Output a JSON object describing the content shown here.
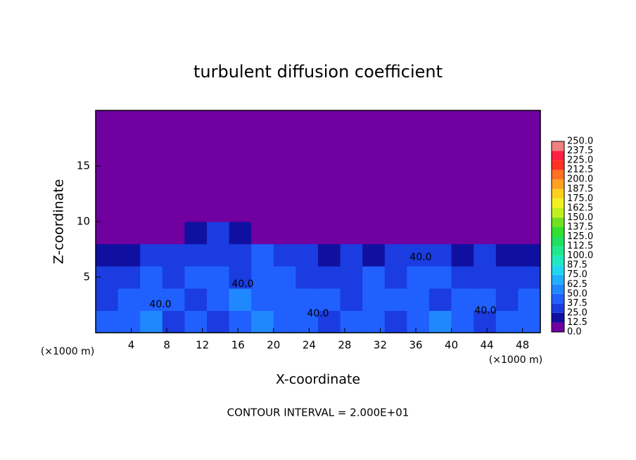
{
  "chart_data": {
    "type": "heatmap",
    "title": "turbulent diffusion coefficient",
    "x_label": "X-coordinate",
    "y_label": "Z-coordinate",
    "x_unit": "(×1000 m)",
    "x_unit_right": "(×1000 m)",
    "footnote": "CONTOUR INTERVAL = 2.000E+01",
    "xlim": [
      0,
      50
    ],
    "ylim": [
      0,
      20
    ],
    "xticks": [
      4,
      8,
      12,
      16,
      20,
      24,
      28,
      32,
      36,
      40,
      44,
      48
    ],
    "yticks": [
      5,
      10,
      15
    ],
    "z": [
      [
        40,
        45,
        50,
        35,
        40,
        30,
        45,
        60,
        45,
        40,
        35,
        40,
        45,
        30,
        45,
        55,
        40,
        35,
        40,
        45
      ],
      [
        35,
        40,
        45,
        40,
        35,
        40,
        50,
        45,
        40,
        45,
        40,
        35,
        40,
        45,
        40,
        35,
        40,
        45,
        35,
        40
      ],
      [
        30,
        35,
        40,
        35,
        40,
        45,
        35,
        40,
        45,
        35,
        30,
        35,
        40,
        35,
        40,
        45,
        30,
        35,
        30,
        35
      ],
      [
        20,
        20,
        25,
        30,
        35,
        30,
        35,
        40,
        30,
        25,
        20,
        25,
        20,
        25,
        30,
        25,
        20,
        25,
        20,
        20
      ],
      [
        0,
        0,
        0,
        0,
        20,
        25,
        20,
        0,
        0,
        0,
        0,
        0,
        0,
        0,
        0,
        0,
        0,
        0,
        0,
        0
      ],
      [
        0,
        0,
        0,
        0,
        0,
        0,
        0,
        0,
        0,
        0,
        0,
        0,
        0,
        0,
        0,
        0,
        0,
        0,
        0,
        0
      ],
      [
        0,
        0,
        0,
        0,
        0,
        0,
        0,
        0,
        0,
        0,
        0,
        0,
        0,
        0,
        0,
        0,
        0,
        0,
        0,
        0
      ],
      [
        0,
        0,
        0,
        0,
        0,
        0,
        0,
        0,
        0,
        0,
        0,
        0,
        0,
        0,
        0,
        0,
        0,
        0,
        0,
        0
      ],
      [
        0,
        0,
        0,
        0,
        0,
        0,
        0,
        0,
        0,
        0,
        0,
        0,
        0,
        0,
        0,
        0,
        0,
        0,
        0,
        0
      ],
      [
        0,
        0,
        0,
        0,
        0,
        0,
        0,
        0,
        0,
        0,
        0,
        0,
        0,
        0,
        0,
        0,
        0,
        0,
        0,
        0
      ]
    ],
    "levels": [
      {
        "value": 0,
        "label": "0.0"
      },
      12.5,
      {
        "value": 25,
        "label": "25.0"
      },
      37.5,
      {
        "value": 50,
        "label": "50.0"
      },
      62.5,
      {
        "value": 75,
        "label": "75.0"
      },
      87.5,
      {
        "value": 100,
        "label": "100.0"
      },
      112.5,
      {
        "value": 125,
        "label": "125.0"
      },
      137.5,
      {
        "value": 150,
        "label": "150.0"
      },
      162.5,
      {
        "value": 175,
        "label": "175.0"
      },
      187.5,
      {
        "value": 200,
        "label": "200.0"
      },
      212.5,
      {
        "value": 225,
        "label": "225.0"
      },
      237.5,
      {
        "value": 250,
        "label": "250.0"
      }
    ],
    "colors": [
      "#7000a0",
      "#1010a0",
      "#1a3ce0",
      "#2060ff",
      "#2088ff",
      "#20b0ff",
      "#20d8f0",
      "#20e8c0",
      "#20e890",
      "#20e060",
      "#30e030",
      "#70e020",
      "#c0f020",
      "#f0f020",
      "#ffd020",
      "#ffa020",
      "#ff7020",
      "#ff3020",
      "#ff2040",
      "#f08080"
    ],
    "contour_labels": [
      "40.0",
      "40.0",
      "40.0",
      "40.0",
      "40.0"
    ]
  }
}
